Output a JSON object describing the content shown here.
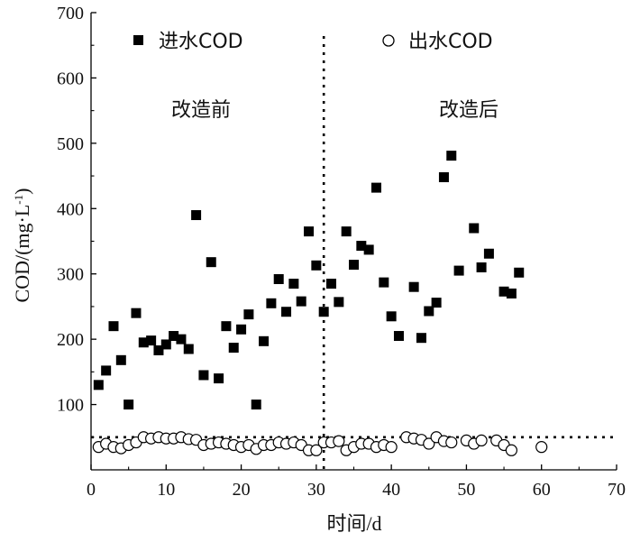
{
  "chart_data": {
    "type": "scatter",
    "title": "",
    "xlabel": "时间/d",
    "ylabel_parts": {
      "main": "COD/(mg·L",
      "sup": "-1",
      "close": ")"
    },
    "xlim": [
      0,
      70
    ],
    "ylim": [
      0,
      700
    ],
    "x_ticks": [
      0,
      10,
      20,
      30,
      40,
      50,
      60,
      70
    ],
    "y_ticks": [
      100,
      200,
      300,
      400,
      500,
      600,
      700
    ],
    "x_tick_labels": [
      "0",
      "10",
      "20",
      "30",
      "40",
      "50",
      "60",
      "70"
    ],
    "y_tick_labels": [
      "100",
      "200",
      "300",
      "400",
      "500",
      "600",
      "700"
    ],
    "legend": {
      "position": "top",
      "entries": [
        "进水COD",
        "出水COD"
      ]
    },
    "annotations": {
      "before": "改造前",
      "after": "改造后"
    },
    "divider_x": 31,
    "standard_line_y": 50,
    "series": [
      {
        "name": "进水COD",
        "marker": "filled-square",
        "color": "#000000",
        "x": [
          1,
          2,
          3,
          4,
          5,
          6,
          7,
          8,
          9,
          10,
          11,
          12,
          13,
          14,
          15,
          16,
          17,
          18,
          19,
          20,
          21,
          22,
          23,
          24,
          25,
          26,
          27,
          28,
          29,
          30,
          31,
          32,
          33,
          34,
          35,
          36,
          37,
          38,
          39,
          40,
          41,
          43,
          44,
          45,
          46,
          47,
          48,
          49,
          51,
          52,
          53,
          55,
          56,
          57
        ],
        "y": [
          130,
          152,
          220,
          168,
          100,
          240,
          195,
          198,
          183,
          192,
          205,
          200,
          185,
          390,
          145,
          318,
          140,
          220,
          187,
          215,
          238,
          100,
          197,
          255,
          292,
          242,
          285,
          258,
          365,
          313,
          242,
          285,
          257,
          365,
          314,
          343,
          337,
          432,
          287,
          235,
          205,
          280,
          202,
          243,
          256,
          448,
          481,
          305,
          370,
          310,
          331,
          273,
          270,
          302
        ]
      },
      {
        "name": "出水COD",
        "marker": "open-circle",
        "color": "#000000",
        "x": [
          1,
          2,
          3,
          4,
          5,
          6,
          7,
          8,
          9,
          10,
          11,
          12,
          13,
          14,
          15,
          16,
          17,
          18,
          19,
          20,
          21,
          22,
          23,
          24,
          25,
          26,
          27,
          28,
          29,
          30,
          31,
          32,
          33,
          34,
          35,
          36,
          37,
          38,
          39,
          40,
          42,
          43,
          44,
          45,
          46,
          47,
          48,
          50,
          51,
          52,
          54,
          55,
          56,
          60
        ],
        "y": [
          35,
          40,
          35,
          33,
          38,
          42,
          50,
          48,
          50,
          48,
          48,
          50,
          47,
          46,
          38,
          40,
          42,
          40,
          38,
          35,
          38,
          32,
          38,
          38,
          42,
          40,
          42,
          38,
          30,
          30,
          42,
          42,
          44,
          30,
          35,
          40,
          40,
          35,
          38,
          35,
          50,
          48,
          46,
          40,
          50,
          44,
          42,
          45,
          40,
          45,
          45,
          38,
          30,
          35
        ]
      }
    ]
  }
}
